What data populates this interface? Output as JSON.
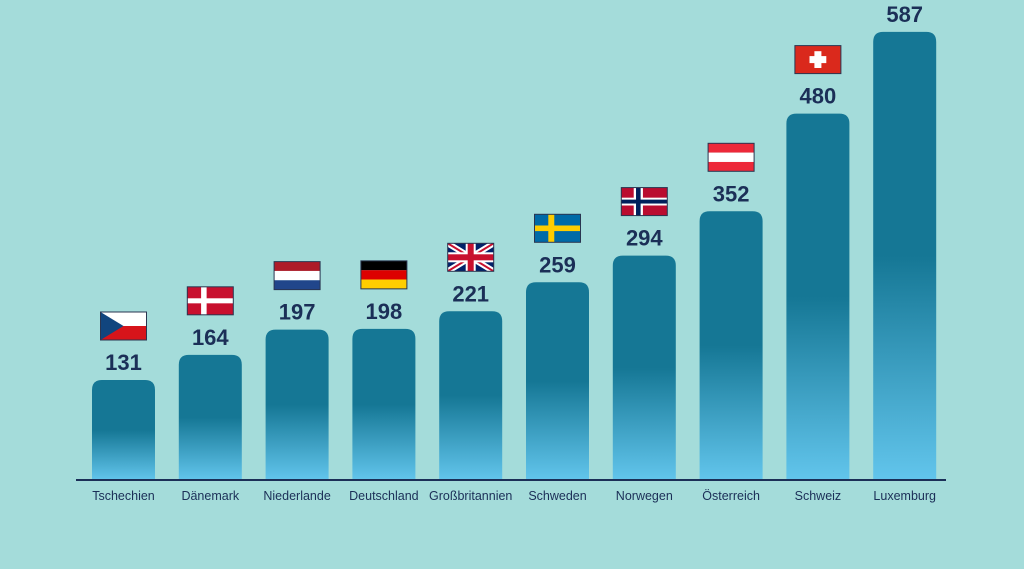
{
  "chart_data": {
    "type": "bar",
    "categories": [
      "Tschechien",
      "Dänemark",
      "Niederlande",
      "Deutschland",
      "Großbritannien",
      "Schweden",
      "Norwegen",
      "Österreich",
      "Schweiz",
      "Luxemburg"
    ],
    "values": [
      131,
      164,
      197,
      198,
      221,
      259,
      294,
      352,
      480,
      587
    ],
    "flags": [
      "flag-czech-icon",
      "flag-denmark-icon",
      "flag-netherlands-icon",
      "flag-germany-icon",
      "flag-uk-icon",
      "flag-sweden-icon",
      "flag-norway-icon",
      "flag-austria-icon",
      "flag-switzerland-icon",
      "flag-luxembourg-icon"
    ],
    "ylim": [
      0,
      600
    ],
    "grid": false,
    "legend": "none",
    "colors": {
      "background": "#a4dcda",
      "bar_top": "#157795",
      "bar_bottom": "#62c5ec",
      "text": "#1b2f57",
      "axis": "#1b2f57"
    }
  }
}
